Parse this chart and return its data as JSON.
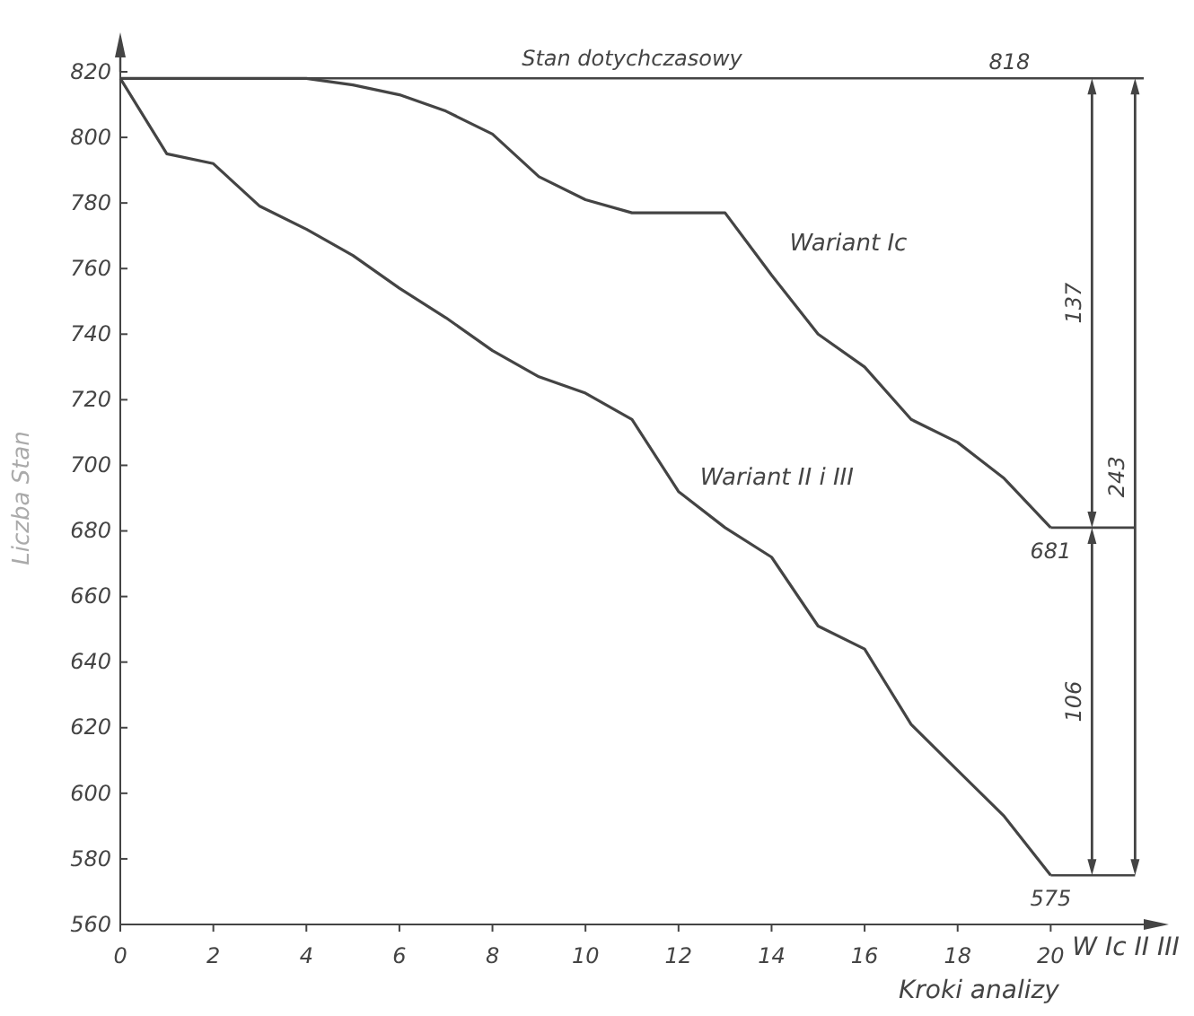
{
  "chart_data": {
    "type": "line",
    "xlabel": "Kroki analizy",
    "ylabel": "Liczba Stan",
    "x": [
      0,
      1,
      2,
      3,
      4,
      5,
      6,
      7,
      8,
      9,
      10,
      11,
      12,
      13,
      14,
      15,
      16,
      17,
      18,
      19,
      20
    ],
    "xlim": [
      0,
      22
    ],
    "xticks": [
      0,
      2,
      4,
      6,
      8,
      10,
      12,
      14,
      16,
      18,
      20
    ],
    "ylim": [
      560,
      820
    ],
    "yticks": [
      560,
      580,
      600,
      620,
      640,
      660,
      680,
      700,
      720,
      740,
      760,
      780,
      800,
      820
    ],
    "series": [
      {
        "name": "Wariant Ic",
        "color": "#444444",
        "values": [
          818,
          818,
          818,
          818,
          818,
          816,
          813,
          808,
          801,
          788,
          781,
          777,
          777,
          777,
          758,
          740,
          730,
          714,
          707,
          696,
          681
        ]
      },
      {
        "name": "Wariant II i III",
        "color": "#444444",
        "values": [
          818,
          795,
          792,
          779,
          772,
          764,
          754,
          745,
          735,
          727,
          722,
          714,
          692,
          681,
          672,
          651,
          644,
          621,
          607,
          593,
          575
        ]
      }
    ],
    "ref_lines": [
      {
        "axis": "y",
        "value": 818,
        "label": "Stan dotychczasowy",
        "color": "#444444"
      }
    ],
    "annotations": [
      "818",
      "681",
      "575",
      "137",
      "106",
      "243",
      "W Ic II III"
    ],
    "grid": false,
    "marker": "none",
    "line_style": "solid",
    "legend": false
  }
}
